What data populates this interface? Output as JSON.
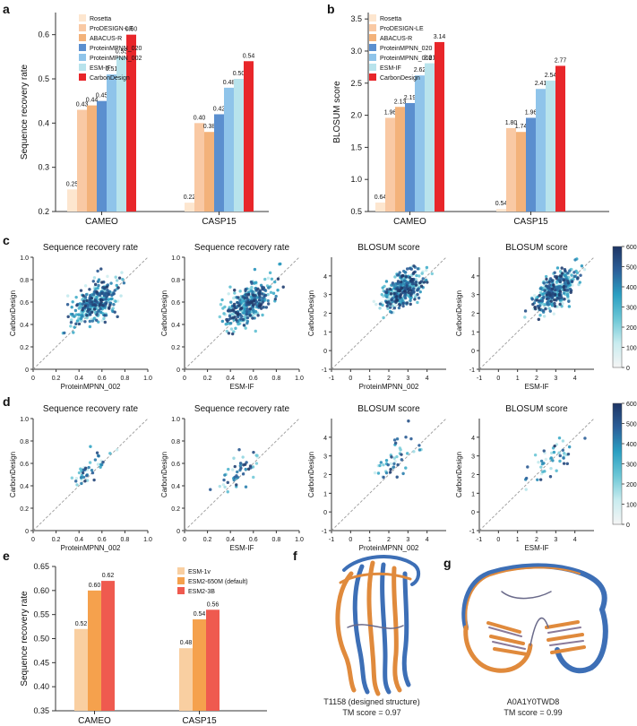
{
  "panel_labels": {
    "a": "a",
    "b": "b",
    "c": "c",
    "d": "d",
    "e": "e",
    "f": "f",
    "g": "g"
  },
  "colors": {
    "Rosetta": "#fde6cf",
    "ProDESIGN-LE": "#f9c9a4",
    "ABACUS-R": "#f3b27a",
    "ProteinMPNN_020": "#5b8fcf",
    "ProteinMPNN_002": "#8fc4ea",
    "ESM-IF": "#b8e3ec",
    "CarbonDesign": "#e8262a",
    "ESM-1v": "#f9cfa1",
    "ESM2-650M (default)": "#f5a14d",
    "ESM2-3B": "#ef5a4f",
    "diagonal": "#9a9a9a",
    "colormap": [
      "#f5f5f5",
      "#c9ecef",
      "#6cc7d6",
      "#2a9fc2",
      "#2b5f99",
      "#1e3564"
    ]
  },
  "chart_data": [
    {
      "id": "a",
      "type": "bar",
      "categories": [
        "CAMEO",
        "CASP15"
      ],
      "series": [
        {
          "name": "Rosetta",
          "values": [
            0.25,
            0.22
          ]
        },
        {
          "name": "ProDESIGN-LE",
          "values": [
            0.43,
            0.4
          ]
        },
        {
          "name": "ABACUS-R",
          "values": [
            0.44,
            0.38
          ]
        },
        {
          "name": "ProteinMPNN_020",
          "values": [
            0.45,
            0.42
          ]
        },
        {
          "name": "ProteinMPNN_002",
          "values": [
            0.51,
            0.48
          ]
        },
        {
          "name": "ESM-IF",
          "values": [
            0.55,
            0.5
          ]
        },
        {
          "name": "CarbonDesign",
          "values": [
            0.6,
            0.54
          ]
        }
      ],
      "labels": [
        [
          "0.25",
          "0.22"
        ],
        [
          "0.43",
          "0.40"
        ],
        [
          "0.44",
          "0.38"
        ],
        [
          "0.45",
          "0.42"
        ],
        [
          "0.51",
          "0.48"
        ],
        [
          "0.55",
          "0.50"
        ],
        [
          "0.60",
          "0.54"
        ]
      ],
      "ylabel": "Sequence recovery rate",
      "ylim": [
        0.2,
        0.65
      ],
      "yticks": [
        0.2,
        0.3,
        0.4,
        0.5,
        0.6
      ],
      "ytick_labels": [
        "0.2",
        "0.3",
        "0.4",
        "0.5",
        "0.6"
      ],
      "legend": "top-left"
    },
    {
      "id": "b",
      "type": "bar",
      "categories": [
        "CAMEO",
        "CASP15"
      ],
      "series": [
        {
          "name": "Rosetta",
          "values": [
            0.64,
            0.54
          ]
        },
        {
          "name": "ProDESIGN-LE",
          "values": [
            1.96,
            1.8
          ]
        },
        {
          "name": "ABACUS-R",
          "values": [
            2.13,
            1.74
          ]
        },
        {
          "name": "ProteinMPNN_020",
          "values": [
            2.19,
            1.96
          ]
        },
        {
          "name": "ProteinMPNN_002",
          "values": [
            2.62,
            2.41
          ]
        },
        {
          "name": "ESM-IF",
          "values": [
            2.81,
            2.54
          ]
        },
        {
          "name": "CarbonDesign",
          "values": [
            3.14,
            2.77
          ]
        }
      ],
      "labels": [
        [
          "0.64",
          "0.54"
        ],
        [
          "1.96",
          "1.80"
        ],
        [
          "2.13",
          "1.74"
        ],
        [
          "2.19",
          "1.96"
        ],
        [
          "2.62",
          "2.41"
        ],
        [
          "2.81",
          "2.54"
        ],
        [
          "3.14",
          "2.77"
        ]
      ],
      "ylabel": "BLOSUM score",
      "ylim": [
        0.5,
        3.6
      ],
      "yticks": [
        0.5,
        1.0,
        1.5,
        2.0,
        2.5,
        3.0,
        3.5
      ],
      "ytick_labels": [
        "0.5",
        "1.0",
        "1.5",
        "2.0",
        "2.5",
        "3.0",
        "3.5"
      ],
      "legend": "top-left"
    },
    {
      "id": "c1",
      "type": "scatter",
      "title": "Sequence recovery rate",
      "xlabel": "ProteinMPNN_002",
      "ylabel": "CarbonDesign",
      "xlim": [
        0,
        1
      ],
      "ylim": [
        0,
        1
      ],
      "xticks": [
        0,
        0.2,
        0.4,
        0.6,
        0.8,
        1.0
      ],
      "xtick_labels": [
        "0",
        "0.2",
        "0.4",
        "0.6",
        "0.8",
        "1.0"
      ],
      "yticks": [
        0,
        0.2,
        0.4,
        0.6,
        0.8,
        1.0
      ],
      "ytick_labels": [
        "0",
        "0.2",
        "0.4",
        "0.6",
        "0.8",
        "1.0"
      ],
      "center": [
        0.54,
        0.59
      ],
      "spread": [
        0.1,
        0.08
      ],
      "n": 380,
      "colorscale_max": 600
    },
    {
      "id": "c2",
      "type": "scatter",
      "title": "Sequence recovery rate",
      "xlabel": "ESM-IF",
      "ylabel": "CarbonDesign",
      "xlim": [
        0,
        1
      ],
      "ylim": [
        0,
        1
      ],
      "xticks": [
        0,
        0.2,
        0.4,
        0.6,
        0.8,
        1.0
      ],
      "xtick_labels": [
        "0",
        "0.2",
        "0.4",
        "0.6",
        "0.8",
        "1.0"
      ],
      "yticks": [
        0,
        0.2,
        0.4,
        0.6,
        0.8,
        1.0
      ],
      "ytick_labels": [
        "0",
        "0.2",
        "0.4",
        "0.6",
        "0.8",
        "1.0"
      ],
      "center": [
        0.55,
        0.58
      ],
      "spread": [
        0.1,
        0.08
      ],
      "n": 380,
      "colorscale_max": 600
    },
    {
      "id": "c3",
      "type": "scatter",
      "title": "BLOSUM score",
      "xlabel": "ProteinMPNN_002",
      "ylabel": "CarbonDesign",
      "xlim": [
        -1,
        5
      ],
      "ylim": [
        -1,
        5
      ],
      "xticks": [
        -1,
        0,
        1,
        2,
        3,
        4
      ],
      "xtick_labels": [
        "-1",
        "0",
        "1",
        "2",
        "3",
        "4"
      ],
      "yticks": [
        -1,
        0,
        1,
        2,
        3,
        4
      ],
      "ytick_labels": [
        "-1",
        "0",
        "1",
        "2",
        "3",
        "4"
      ],
      "center": [
        2.7,
        3.2
      ],
      "spread": [
        0.55,
        0.45
      ],
      "n": 380,
      "colorscale_max": 600
    },
    {
      "id": "c4",
      "type": "scatter",
      "title": "BLOSUM score",
      "xlabel": "ESM-IF",
      "ylabel": "CarbonDesign",
      "xlim": [
        -1,
        5
      ],
      "ylim": [
        -1,
        5
      ],
      "xticks": [
        -1,
        0,
        1,
        2,
        3,
        4
      ],
      "xtick_labels": [
        "-1",
        "0",
        "1",
        "2",
        "3",
        "4"
      ],
      "yticks": [
        -1,
        0,
        1,
        2,
        3,
        4
      ],
      "ytick_labels": [
        "-1",
        "0",
        "1",
        "2",
        "3",
        "4"
      ],
      "center": [
        3.0,
        3.2
      ],
      "spread": [
        0.55,
        0.45
      ],
      "n": 380,
      "colorscale_max": 600
    },
    {
      "id": "d1",
      "type": "scatter",
      "title": "Sequence recovery rate",
      "xlabel": "ProteinMPNN_002",
      "ylabel": "CarbonDesign",
      "xlim": [
        0,
        1
      ],
      "ylim": [
        0,
        1
      ],
      "xticks": [
        0,
        0.2,
        0.4,
        0.6,
        0.8,
        1.0
      ],
      "xtick_labels": [
        "0",
        "0.2",
        "0.4",
        "0.6",
        "0.8",
        "1.0"
      ],
      "yticks": [
        0,
        0.2,
        0.4,
        0.6,
        0.8,
        1.0
      ],
      "ytick_labels": [
        "0",
        "0.2",
        "0.4",
        "0.6",
        "0.8",
        "1.0"
      ],
      "center": [
        0.48,
        0.53
      ],
      "spread": [
        0.08,
        0.07
      ],
      "n": 45,
      "colorscale_max": 600
    },
    {
      "id": "d2",
      "type": "scatter",
      "title": "Sequence recovery rate",
      "xlabel": "ESM-IF",
      "ylabel": "CarbonDesign",
      "xlim": [
        0,
        1
      ],
      "ylim": [
        0,
        1
      ],
      "xticks": [
        0,
        0.2,
        0.4,
        0.6,
        0.8,
        1.0
      ],
      "xtick_labels": [
        "0",
        "0.2",
        "0.4",
        "0.6",
        "0.8",
        "1.0"
      ],
      "yticks": [
        0,
        0.2,
        0.4,
        0.6,
        0.8,
        1.0
      ],
      "ytick_labels": [
        "0",
        "0.2",
        "0.4",
        "0.6",
        "0.8",
        "1.0"
      ],
      "center": [
        0.5,
        0.53
      ],
      "spread": [
        0.1,
        0.07
      ],
      "n": 45,
      "colorscale_max": 600
    },
    {
      "id": "d3",
      "type": "scatter",
      "title": "BLOSUM score",
      "xlabel": "ProteinMPNN_002",
      "ylabel": "CarbonDesign",
      "xlim": [
        -1,
        5
      ],
      "ylim": [
        -1,
        5
      ],
      "xticks": [
        -1,
        0,
        1,
        2,
        3,
        4
      ],
      "xtick_labels": [
        "-1",
        "0",
        "1",
        "2",
        "3",
        "4"
      ],
      "yticks": [
        -1,
        0,
        1,
        2,
        3,
        4
      ],
      "ytick_labels": [
        "-1",
        "0",
        "1",
        "2",
        "3",
        "4"
      ],
      "center": [
        2.4,
        2.8
      ],
      "spread": [
        0.6,
        0.5
      ],
      "n": 45,
      "colorscale_max": 600
    },
    {
      "id": "d4",
      "type": "scatter",
      "title": "BLOSUM score",
      "xlabel": "ESM-IF",
      "ylabel": "CarbonDesign",
      "xlim": [
        -1,
        5
      ],
      "ylim": [
        -1,
        5
      ],
      "xticks": [
        -1,
        0,
        1,
        2,
        3,
        4
      ],
      "xtick_labels": [
        "-1",
        "0",
        "1",
        "2",
        "3",
        "4"
      ],
      "yticks": [
        -1,
        0,
        1,
        2,
        3,
        4
      ],
      "ytick_labels": [
        "-1",
        "0",
        "1",
        "2",
        "3",
        "4"
      ],
      "center": [
        2.7,
        2.8
      ],
      "spread": [
        0.6,
        0.5
      ],
      "n": 45,
      "colorscale_max": 600
    },
    {
      "id": "e",
      "type": "bar",
      "categories": [
        "CAMEO",
        "CASP15"
      ],
      "series": [
        {
          "name": "ESM-1v",
          "values": [
            0.52,
            0.48
          ]
        },
        {
          "name": "ESM2-650M (default)",
          "values": [
            0.6,
            0.54
          ]
        },
        {
          "name": "ESM2-3B",
          "values": [
            0.62,
            0.56
          ]
        }
      ],
      "labels": [
        [
          "0.52",
          "0.48"
        ],
        [
          "0.60",
          "0.54"
        ],
        [
          "0.62",
          "0.56"
        ]
      ],
      "ylabel": "Sequence recovery rate",
      "ylim": [
        0.35,
        0.65
      ],
      "yticks": [
        0.35,
        0.4,
        0.45,
        0.5,
        0.55,
        0.6,
        0.65
      ],
      "ytick_labels": [
        "0.35",
        "0.40",
        "0.45",
        "0.50",
        "0.55",
        "0.60",
        "0.65"
      ],
      "legend": "top-right"
    }
  ],
  "colorbars": [
    {
      "id": "cb-c",
      "ticks": [
        0,
        100,
        200,
        300,
        400,
        500,
        600
      ],
      "tick_labels": [
        "0",
        "100",
        "200",
        "300",
        "400",
        "500",
        "600"
      ]
    },
    {
      "id": "cb-d",
      "ticks": [
        0,
        100,
        200,
        300,
        400,
        500,
        600
      ],
      "tick_labels": [
        "0",
        "100",
        "200",
        "300",
        "400",
        "500",
        "600"
      ]
    }
  ],
  "structures": {
    "f": {
      "name": "T1158 (designed structure)",
      "tm": "TM score = 0.97"
    },
    "g": {
      "name": "A0A1Y0TWD8",
      "tm": "TM score = 0.99"
    }
  }
}
